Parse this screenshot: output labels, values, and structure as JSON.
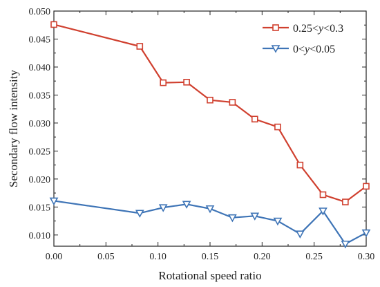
{
  "chart_data": {
    "type": "line",
    "xlabel": "Rotational speed ratio",
    "ylabel": "Secondary flow intensity",
    "xlim": [
      0.0,
      0.3
    ],
    "ylim": [
      0.008,
      0.05
    ],
    "x_ticks": [
      "0.00",
      "0.05",
      "0.10",
      "0.15",
      "0.20",
      "0.25",
      "0.30"
    ],
    "y_ticks": [
      "0.010",
      "0.015",
      "0.020",
      "0.025",
      "0.030",
      "0.035",
      "0.040",
      "0.045",
      "0.050"
    ],
    "grid": false,
    "legend_position": "top-right",
    "series": [
      {
        "name_parts": [
          "0.25<",
          "y",
          "<0.3"
        ],
        "color": "#d0402f",
        "marker": "square",
        "x": [
          0.0,
          0.0825,
          0.105,
          0.1275,
          0.15,
          0.1715,
          0.193,
          0.215,
          0.2365,
          0.2585,
          0.28,
          0.3
        ],
        "y": [
          0.0476,
          0.0437,
          0.0372,
          0.0373,
          0.0341,
          0.0337,
          0.0307,
          0.0293,
          0.0225,
          0.0172,
          0.0159,
          0.0187
        ]
      },
      {
        "name_parts": [
          "0<",
          "y",
          "<0.05"
        ],
        "color": "#3e74b6",
        "marker": "triangle-down",
        "x": [
          0.0,
          0.0825,
          0.105,
          0.1275,
          0.15,
          0.1715,
          0.193,
          0.215,
          0.2365,
          0.2585,
          0.28,
          0.3
        ],
        "y": [
          0.0161,
          0.0139,
          0.0149,
          0.0155,
          0.0147,
          0.0131,
          0.0134,
          0.0125,
          0.0102,
          0.0143,
          0.0084,
          0.0104
        ]
      }
    ]
  }
}
